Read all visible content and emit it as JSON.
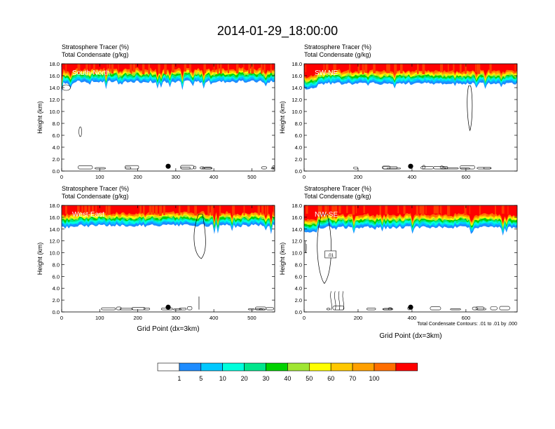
{
  "figure": {
    "title": "2014-01-29_18:00:00",
    "variable_line1": "Stratosphere Tracer   (%)",
    "variable_line2": "Total Condensate   (g/kg)",
    "contour_note": "Total Condensate Contours: .01 to .01 by .000",
    "colors": [
      "#ffffff",
      "#1e8cff",
      "#00c8ff",
      "#00ffdc",
      "#00e68c",
      "#00d200",
      "#a0e632",
      "#ffff00",
      "#ffc800",
      "#ffa000",
      "#ff6e00",
      "#ff0000"
    ]
  },
  "chart_data": [
    {
      "type": "heatmap",
      "panel_label": "South-North",
      "ylabel": "Height (km)",
      "xlabel": "",
      "xlim": [
        0,
        560
      ],
      "ylim": [
        0,
        18
      ],
      "xticks": [
        "0",
        "100",
        "200",
        "300",
        "400",
        "500"
      ],
      "yticks": [
        "0.0",
        "2.0",
        "4.0",
        "6.0",
        "8.0",
        "10.0",
        "12.0",
        "14.0",
        "16.0",
        "18.0"
      ],
      "tracer_base_km": 15.0,
      "marker_x": 280,
      "contour_label": ""
    },
    {
      "type": "heatmap",
      "panel_label": "SW-NE",
      "ylabel": "Height (km)",
      "xlabel": "",
      "xlim": [
        0,
        790
      ],
      "ylim": [
        0,
        18
      ],
      "xticks": [
        "0",
        "200",
        "400",
        "600"
      ],
      "yticks": [
        "0.0",
        "2.0",
        "4.0",
        "6.0",
        "8.0",
        "10.0",
        "12.0",
        "14.0",
        "16.0",
        "18.0"
      ],
      "tracer_base_km": 14.7,
      "marker_x": 395,
      "contour_label": ""
    },
    {
      "type": "heatmap",
      "panel_label": "West-East",
      "ylabel": "Height (km)",
      "xlabel": "Grid Point (dx=3km)",
      "xlim": [
        0,
        560
      ],
      "ylim": [
        0,
        18
      ],
      "xticks": [
        "0",
        "100",
        "200",
        "300",
        "400",
        "500"
      ],
      "yticks": [
        "0.0",
        "2.0",
        "4.0",
        "6.0",
        "8.0",
        "10.0",
        "12.0",
        "14.0",
        "16.0",
        "18.0"
      ],
      "tracer_base_km": 14.6,
      "marker_x": 280,
      "contour_label": ""
    },
    {
      "type": "heatmap",
      "panel_label": "NW-SE",
      "ylabel": "Height (km)",
      "xlabel": "Grid Point (dx=3km)",
      "xlim": [
        0,
        790
      ],
      "ylim": [
        0,
        18
      ],
      "xticks": [
        "0",
        "200",
        "400",
        "600"
      ],
      "yticks": [
        "0.0",
        "2.0",
        "4.0",
        "6.0",
        "8.0",
        "10.0",
        "12.0",
        "14.0",
        "16.0",
        "18.0"
      ],
      "tracer_base_km": 14.3,
      "marker_x": 395,
      "contour_label": ".01"
    }
  ],
  "colorbar": {
    "labels": [
      "1",
      "5",
      "10",
      "20",
      "30",
      "40",
      "50",
      "60",
      "70",
      "100"
    ],
    "colors": [
      "#ffffff",
      "#1e8cff",
      "#00c8ff",
      "#00ffdc",
      "#00e68c",
      "#00d200",
      "#a0e632",
      "#ffff00",
      "#ffc800",
      "#ffa000",
      "#ff6e00",
      "#ff0000"
    ]
  }
}
